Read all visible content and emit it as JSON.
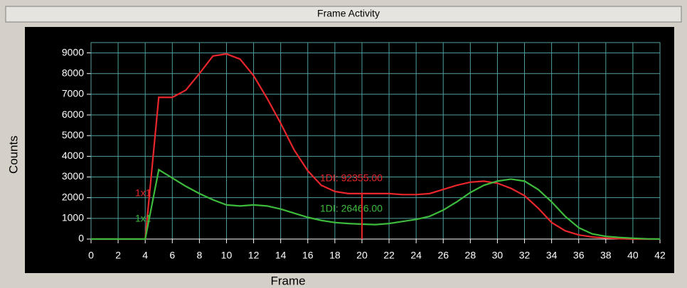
{
  "chart_data": {
    "type": "line",
    "title": "Frame Activity",
    "xlabel": "Frame",
    "ylabel": "Counts",
    "x": [
      0,
      1,
      2,
      3,
      4,
      5,
      6,
      7,
      8,
      9,
      10,
      11,
      12,
      13,
      14,
      15,
      16,
      17,
      18,
      19,
      20,
      21,
      22,
      23,
      24,
      25,
      26,
      27,
      28,
      29,
      30,
      31,
      32,
      33,
      34,
      35,
      36,
      37,
      38,
      39,
      40,
      41,
      42
    ],
    "series": [
      {
        "name": "1x1",
        "label": "1DI: 92355.00",
        "color": "#e8262b",
        "values": [
          0,
          0,
          0,
          0,
          0,
          6850,
          6850,
          7200,
          8000,
          8850,
          8950,
          8700,
          7900,
          6800,
          5600,
          4300,
          3300,
          2600,
          2300,
          2200,
          2200,
          2200,
          2200,
          2150,
          2150,
          2200,
          2400,
          2600,
          2750,
          2800,
          2700,
          2450,
          2100,
          1500,
          800,
          400,
          200,
          100,
          50,
          20,
          0,
          0,
          0
        ]
      },
      {
        "name": "1x1",
        "label": "1DI: 26466.00",
        "color": "#3dbb3d",
        "values": [
          0,
          0,
          0,
          0,
          0,
          3350,
          2950,
          2550,
          2200,
          1900,
          1650,
          1600,
          1650,
          1600,
          1450,
          1250,
          1050,
          900,
          800,
          750,
          720,
          700,
          750,
          850,
          950,
          1100,
          1400,
          1800,
          2250,
          2600,
          2800,
          2900,
          2800,
          2400,
          1800,
          1100,
          550,
          250,
          130,
          80,
          40,
          10,
          0
        ]
      }
    ],
    "cursor_x": 20,
    "xlim": [
      0,
      42
    ],
    "xticks": [
      0,
      2,
      4,
      6,
      8,
      10,
      12,
      14,
      16,
      18,
      20,
      22,
      24,
      26,
      28,
      30,
      32,
      34,
      36,
      38,
      40,
      42
    ],
    "ylim": [
      0,
      9500
    ],
    "yticks": [
      0,
      1000,
      2000,
      3000,
      4000,
      5000,
      6000,
      7000,
      8000,
      9000
    ],
    "grid": true
  }
}
